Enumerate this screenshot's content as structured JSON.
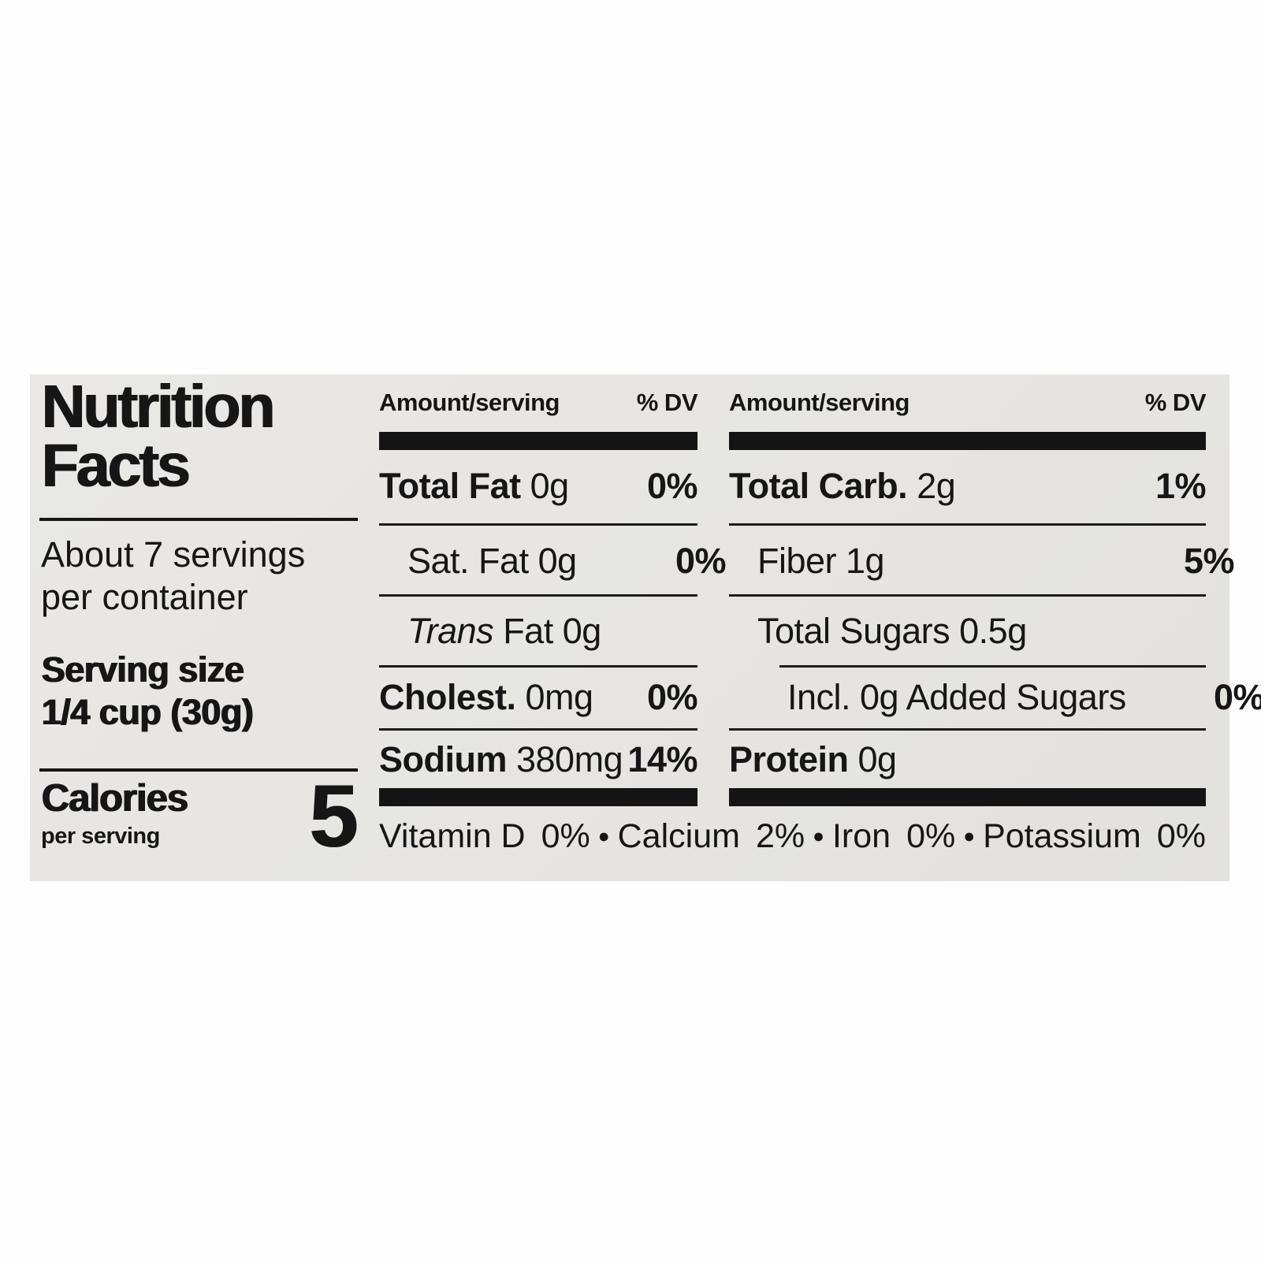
{
  "label_colors": {
    "bg": "#e6e5e2",
    "ink": "#161616",
    "bar": "#141414"
  },
  "left": {
    "title_line1": "Nutrition",
    "title_line2": "Facts",
    "servings_line1": "About 7 servings",
    "servings_line2": "per container",
    "serving_size_line1": "Serving size",
    "serving_size_line2": "1/4 cup (30g)",
    "calories_label": "Calories",
    "calories_sub": "per serving",
    "calories_value": "5"
  },
  "mid": {
    "header_amount": "Amount/serving",
    "header_dv": "% DV",
    "rows": [
      {
        "name": "Total Fat",
        "value": " 0g",
        "dv": "0%"
      },
      {
        "name": "Sat. Fat",
        "value": " 0g",
        "dv": "0%"
      },
      {
        "name_italic": "Trans",
        "name_rest": " Fat",
        "value": " 0g",
        "dv": ""
      },
      {
        "name": "Cholest.",
        "value": " 0mg",
        "dv": "0%"
      },
      {
        "name": "Sodium",
        "value": " 380mg",
        "dv": "14%"
      }
    ]
  },
  "right": {
    "header_amount": "Amount/serving",
    "header_dv": "% DV",
    "rows": [
      {
        "name": "Total Carb.",
        "value": " 2g",
        "dv": "1%"
      },
      {
        "name": "Fiber",
        "value": " 1g",
        "dv": "5%"
      },
      {
        "name": "Total Sugars",
        "value": " 0.5g",
        "dv": ""
      },
      {
        "name": "Incl. 0g Added Sugars",
        "value": "",
        "dv": "0%"
      },
      {
        "name": "Protein",
        "value": " 0g",
        "dv": ""
      }
    ]
  },
  "micronutrients": {
    "bullet": "●",
    "items": [
      {
        "label": "Vitamin D",
        "value": "0%"
      },
      {
        "label": "Calcium",
        "value": "2%"
      },
      {
        "label": "Iron",
        "value": "0%"
      },
      {
        "label": "Potassium",
        "value": "0%"
      }
    ]
  }
}
